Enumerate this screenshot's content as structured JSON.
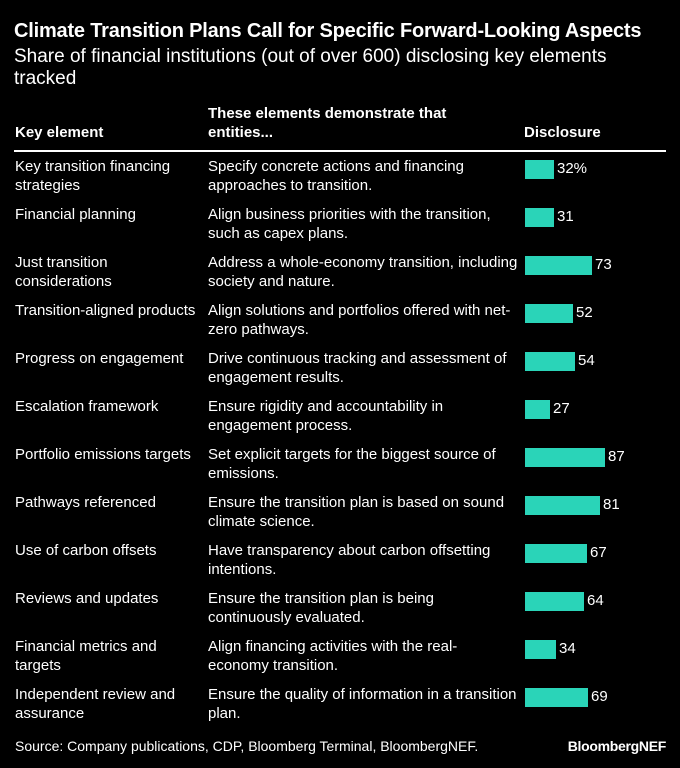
{
  "title": "Climate Transition Plans Call for Specific Forward-Looking Aspects",
  "subtitle": "Share of financial institutions (out of over 600) disclosing key elements tracked",
  "columns": {
    "key": "Key element",
    "description": "These elements demonstrate that entities...",
    "disclosure": "Disclosure"
  },
  "source": "Source: Company publications, CDP, Bloomberg Terminal, BloombergNEF.",
  "brand": "BloombergNEF",
  "colors": {
    "bar": "#2ad4b8",
    "background": "#000000",
    "text": "#ffffff"
  },
  "chart_data": {
    "type": "bar",
    "orientation": "horizontal",
    "unit": "%",
    "categories": [
      "Key transition financing strategies",
      "Financial planning",
      "Just transition considerations",
      "Transition-aligned products",
      "Progress on engagement",
      "Escalation framework",
      "Portfolio emissions targets",
      "Pathways referenced",
      "Use of carbon offsets",
      "Reviews and updates",
      "Financial metrics and targets",
      "Independent review and assurance"
    ],
    "descriptions": [
      "Specify concrete actions and financing approaches to transition.",
      "Align business priorities with the transition, such as capex plans.",
      "Address a whole-economy transition, including society and nature.",
      "Align solutions and portfolios offered with net-zero pathways.",
      "Drive continuous tracking and assessment of engagement results.",
      "Ensure rigidity and accountability in engagement process.",
      "Set explicit targets for the biggest source of emissions.",
      "Ensure the transition plan is based on sound climate science.",
      "Have transparency about carbon offsetting intentions.",
      "Ensure the transition plan is being continuously evaluated.",
      "Align financing activities with the real-economy transition.",
      "Ensure the quality of information in a transition plan."
    ],
    "values": [
      32,
      31,
      73,
      52,
      54,
      27,
      87,
      81,
      67,
      64,
      34,
      69
    ],
    "value_labels": [
      "32%",
      "31",
      "73",
      "52",
      "54",
      "27",
      "87",
      "81",
      "67",
      "64",
      "34",
      "69"
    ]
  }
}
